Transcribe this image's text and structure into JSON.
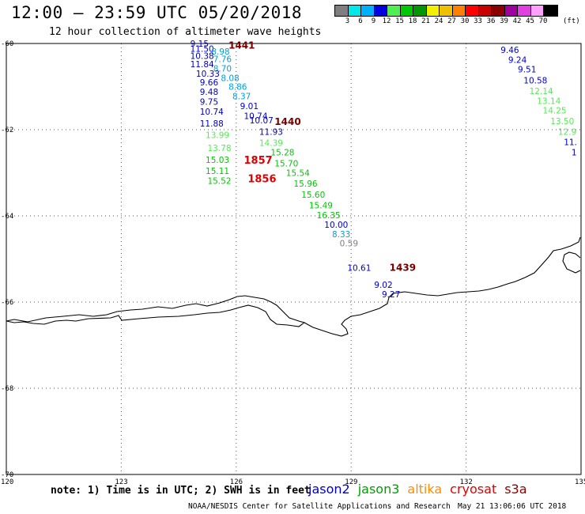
{
  "header": {
    "title": "12:00 – 23:59 UTC 05/20/2018",
    "subtitle": "12 hour collection of altimeter wave heights"
  },
  "colorbar": {
    "unit": "(ft)",
    "colors": [
      "#7f7f7f",
      "#00e8e8",
      "#00b0ff",
      "#0000e0",
      "#50ee50",
      "#00c800",
      "#009600",
      "#f0f000",
      "#f0c000",
      "#ff7f00",
      "#ff0000",
      "#c80000",
      "#8b0000",
      "#a000a0",
      "#e040e0",
      "#ffa0ff",
      "#000000"
    ],
    "ticks": [
      "3",
      "6",
      "9",
      "12",
      "15",
      "18",
      "21",
      "24",
      "27",
      "30",
      "33",
      "36",
      "39",
      "42",
      "45",
      "70"
    ]
  },
  "axes": {
    "lat_labels": [
      "-60",
      "-62",
      "-64",
      "-66",
      "-68",
      "-70"
    ],
    "lon_labels": [
      "120",
      "123",
      "126",
      "129",
      "132",
      "135"
    ]
  },
  "chart_data": {
    "type": "scatter",
    "xlabel": "",
    "ylabel": "",
    "xlim": [
      120,
      135
    ],
    "ylim": [
      -70,
      -60
    ],
    "passes": [
      {
        "satellite": "jason2",
        "time": "1441",
        "time_pos": [
          125.8,
          -60.05
        ],
        "time_color": "#7a0000",
        "points": [
          {
            "lon": 124.8,
            "lat": -60.0,
            "v": "9.15",
            "c": "#0000c8"
          },
          {
            "lon": 124.8,
            "lat": -60.12,
            "v": "11.50",
            "c": "#0000c8"
          },
          {
            "lon": 125.35,
            "lat": -60.18,
            "v": "8.98",
            "c": "#00a0e0"
          },
          {
            "lon": 124.8,
            "lat": -60.28,
            "v": "10.38",
            "c": "#0000c8"
          },
          {
            "lon": 125.4,
            "lat": -60.36,
            "v": "7.76",
            "c": "#00a0e0"
          },
          {
            "lon": 124.8,
            "lat": -60.48,
            "v": "11.84",
            "c": "#0000c8"
          },
          {
            "lon": 125.4,
            "lat": -60.58,
            "v": "8.70",
            "c": "#00a0e0"
          },
          {
            "lon": 124.95,
            "lat": -60.7,
            "v": "10.33",
            "c": "#0000c8"
          },
          {
            "lon": 125.6,
            "lat": -60.8,
            "v": "8.08",
            "c": "#00a0e0"
          },
          {
            "lon": 125.05,
            "lat": -60.9,
            "v": "9.66",
            "c": "#0000c8"
          },
          {
            "lon": 125.8,
            "lat": -61.0,
            "v": "8.86",
            "c": "#00a0e0"
          },
          {
            "lon": 125.05,
            "lat": -61.12,
            "v": "9.48",
            "c": "#0000c8"
          },
          {
            "lon": 125.9,
            "lat": -61.22,
            "v": "8.37",
            "c": "#00a0e0"
          },
          {
            "lon": 125.05,
            "lat": -61.35,
            "v": "9.75",
            "c": "#0000c8"
          },
          {
            "lon": 126.1,
            "lat": -61.45,
            "v": "9.01",
            "c": "#0000c8"
          },
          {
            "lon": 125.05,
            "lat": -61.58,
            "v": "10.74",
            "c": "#0000c8"
          },
          {
            "lon": 126.2,
            "lat": -61.68,
            "v": "10.74",
            "c": "#0000c8"
          },
          {
            "lon": 126.35,
            "lat": -61.78,
            "v": "10.07",
            "c": "#0000c8"
          },
          {
            "lon": 125.05,
            "lat": -61.85,
            "v": "11.88",
            "c": "#0000c8"
          },
          {
            "lon": 126.6,
            "lat": -62.05,
            "v": "11.93",
            "c": "#0000c8"
          },
          {
            "lon": 125.2,
            "lat": -62.12,
            "v": "13.99",
            "c": "#50ee50"
          },
          {
            "lon": 126.6,
            "lat": -62.3,
            "v": "14.39",
            "c": "#50ee50"
          },
          {
            "lon": 125.25,
            "lat": -62.42,
            "v": "13.78",
            "c": "#50ee50"
          },
          {
            "lon": 126.9,
            "lat": -62.52,
            "v": "15.28",
            "c": "#00c800"
          },
          {
            "lon": 125.2,
            "lat": -62.7,
            "v": "15.03",
            "c": "#00c800"
          },
          {
            "lon": 127.0,
            "lat": -62.78,
            "v": "15.70",
            "c": "#00c800"
          },
          {
            "lon": 125.2,
            "lat": -62.95,
            "v": "15.11",
            "c": "#00c800"
          },
          {
            "lon": 127.3,
            "lat": -63.0,
            "v": "15.54",
            "c": "#00c800"
          },
          {
            "lon": 125.25,
            "lat": -63.18,
            "v": "15.52",
            "c": "#00c800"
          },
          {
            "lon": 127.5,
            "lat": -63.25,
            "v": "15.96",
            "c": "#00c800"
          },
          {
            "lon": 127.7,
            "lat": -63.5,
            "v": "15.60",
            "c": "#00c800"
          },
          {
            "lon": 127.9,
            "lat": -63.75,
            "v": "15.49",
            "c": "#00c800"
          },
          {
            "lon": 128.1,
            "lat": -63.98,
            "v": "16.35",
            "c": "#00c800"
          },
          {
            "lon": 128.3,
            "lat": -64.2,
            "v": "10.00",
            "c": "#0000c8"
          },
          {
            "lon": 128.5,
            "lat": -64.42,
            "v": "8.33",
            "c": "#00a0e0"
          },
          {
            "lon": 128.7,
            "lat": -64.63,
            "v": "0.59",
            "c": "#7f7f7f"
          }
        ]
      },
      {
        "satellite": "jason2",
        "time": "1440",
        "time_pos": [
          127.0,
          -61.82
        ],
        "time_color": "#7a0000",
        "points": []
      },
      {
        "satellite": "cryosat",
        "time": "1857",
        "time_pos": [
          126.2,
          -62.72
        ],
        "time_color": "#e00000",
        "points": []
      },
      {
        "satellite": "cryosat",
        "time": "1856",
        "time_pos": [
          126.3,
          -63.15
        ],
        "time_color": "#e00000",
        "points": []
      },
      {
        "satellite": "jason2",
        "time": "1439",
        "time_pos": [
          130.0,
          -65.2
        ],
        "time_color": "#7a0000",
        "points": [
          {
            "lon": 128.9,
            "lat": -65.2,
            "v": "10.61",
            "c": "#0000c8"
          },
          {
            "lon": 129.6,
            "lat": -65.6,
            "v": "9.02",
            "c": "#0000c8"
          },
          {
            "lon": 129.8,
            "lat": -65.82,
            "v": "9.27",
            "c": "#0000c8"
          }
        ]
      },
      {
        "satellite": "jason3",
        "time": "",
        "time_pos": null,
        "time_color": "",
        "points": [
          {
            "lon": 132.9,
            "lat": -60.15,
            "v": "9.46",
            "c": "#0000c8"
          },
          {
            "lon": 133.1,
            "lat": -60.38,
            "v": "9.24",
            "c": "#0000c8"
          },
          {
            "lon": 133.35,
            "lat": -60.6,
            "v": "9.51",
            "c": "#0000c8"
          },
          {
            "lon": 133.5,
            "lat": -60.85,
            "v": "10.58",
            "c": "#0000c8"
          },
          {
            "lon": 133.65,
            "lat": -61.1,
            "v": "12.14",
            "c": "#50ee50"
          },
          {
            "lon": 133.85,
            "lat": -61.33,
            "v": "13.14",
            "c": "#50ee50"
          },
          {
            "lon": 134.0,
            "lat": -61.55,
            "v": "14.25",
            "c": "#50ee50"
          },
          {
            "lon": 134.2,
            "lat": -61.8,
            "v": "13.50",
            "c": "#50ee50"
          },
          {
            "lon": 134.4,
            "lat": -62.05,
            "v": "12.9",
            "c": "#50ee50"
          },
          {
            "lon": 134.55,
            "lat": -62.28,
            "v": "11.",
            "c": "#0000c8"
          },
          {
            "lon": 134.75,
            "lat": -62.52,
            "v": "1",
            "c": "#0000c8"
          }
        ]
      }
    ]
  },
  "footer": {
    "note": "note: 1) Time is in UTC; 2) SWH is in feet",
    "legend": [
      {
        "name": "jason2",
        "color": "#0000c8"
      },
      {
        "name": "jason3",
        "color": "#00a000"
      },
      {
        "name": "altika",
        "color": "#ff8c00"
      },
      {
        "name": "cryosat",
        "color": "#e00000"
      },
      {
        "name": "s3a",
        "color": "#8b0000"
      }
    ],
    "credit": "NOAA/NESDIS Center for Satellite Applications and Research",
    "timestamp": "May 21 13:06:06 UTC 2018"
  }
}
